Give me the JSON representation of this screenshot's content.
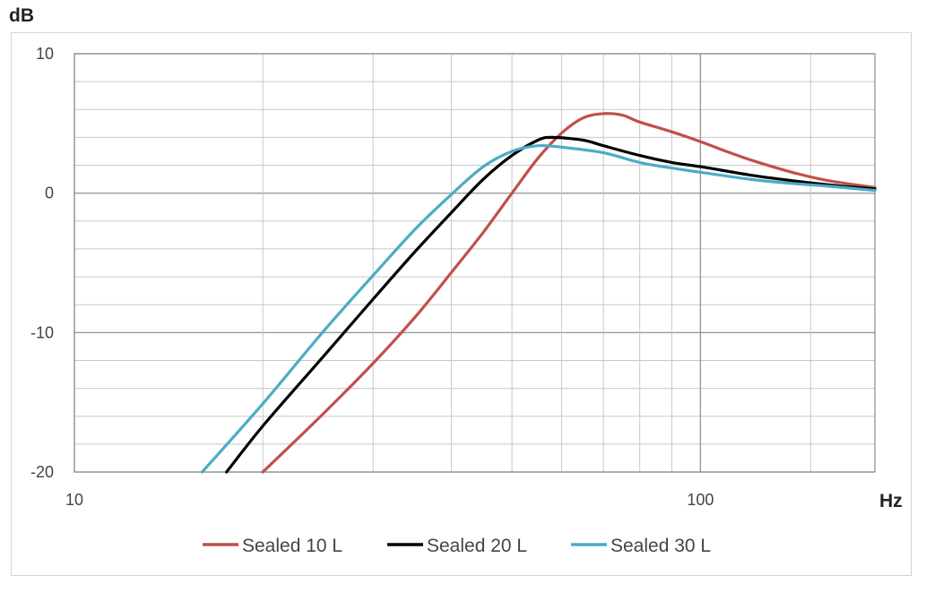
{
  "chart_data": {
    "type": "line",
    "ylabel": "dB",
    "xlabel": "Hz",
    "x_scale": "log",
    "xlim": [
      10,
      190
    ],
    "ylim": [
      -20,
      10
    ],
    "x_ticks": [
      10,
      100
    ],
    "y_ticks": [
      10,
      0,
      -10,
      -20
    ],
    "x_tick_labels": [
      "10",
      "100"
    ],
    "y_tick_labels": [
      "10",
      "0",
      "-10",
      "-20"
    ],
    "grid": true,
    "legend_position": "bottom",
    "series": [
      {
        "name": "Sealed 10 L",
        "color": "#c0504d",
        "points": [
          [
            20,
            -20
          ],
          [
            25,
            -15.8
          ],
          [
            30,
            -12.2
          ],
          [
            35,
            -8.9
          ],
          [
            40,
            -5.7
          ],
          [
            45,
            -2.8
          ],
          [
            50,
            0
          ],
          [
            55,
            2.5
          ],
          [
            60,
            4.3
          ],
          [
            65,
            5.4
          ],
          [
            70,
            5.7
          ],
          [
            75,
            5.6
          ],
          [
            80,
            5.1
          ],
          [
            90,
            4.4
          ],
          [
            100,
            3.7
          ],
          [
            110,
            3.0
          ],
          [
            120,
            2.4
          ],
          [
            140,
            1.5
          ],
          [
            160,
            0.9
          ],
          [
            190,
            0.4
          ]
        ]
      },
      {
        "name": "Sealed 20 L",
        "color": "#000000",
        "points": [
          [
            17.5,
            -20
          ],
          [
            20,
            -16.7
          ],
          [
            25,
            -11.7
          ],
          [
            30,
            -7.6
          ],
          [
            35,
            -4.2
          ],
          [
            40,
            -1.4
          ],
          [
            45,
            1.0
          ],
          [
            50,
            2.7
          ],
          [
            55,
            3.8
          ],
          [
            58,
            4.0
          ],
          [
            65,
            3.8
          ],
          [
            70,
            3.4
          ],
          [
            80,
            2.7
          ],
          [
            90,
            2.2
          ],
          [
            100,
            1.9
          ],
          [
            120,
            1.3
          ],
          [
            140,
            0.9
          ],
          [
            160,
            0.6
          ],
          [
            190,
            0.3
          ]
        ]
      },
      {
        "name": "Sealed 30 L",
        "color": "#4bacc6",
        "points": [
          [
            16,
            -20
          ],
          [
            20,
            -15.1
          ],
          [
            25,
            -9.9
          ],
          [
            30,
            -5.9
          ],
          [
            35,
            -2.6
          ],
          [
            40,
            -0.1
          ],
          [
            45,
            1.9
          ],
          [
            50,
            3.0
          ],
          [
            55,
            3.4
          ],
          [
            60,
            3.3
          ],
          [
            70,
            2.9
          ],
          [
            80,
            2.2
          ],
          [
            90,
            1.8
          ],
          [
            100,
            1.5
          ],
          [
            120,
            1.0
          ],
          [
            140,
            0.7
          ],
          [
            160,
            0.5
          ],
          [
            190,
            0.2
          ]
        ]
      }
    ]
  }
}
